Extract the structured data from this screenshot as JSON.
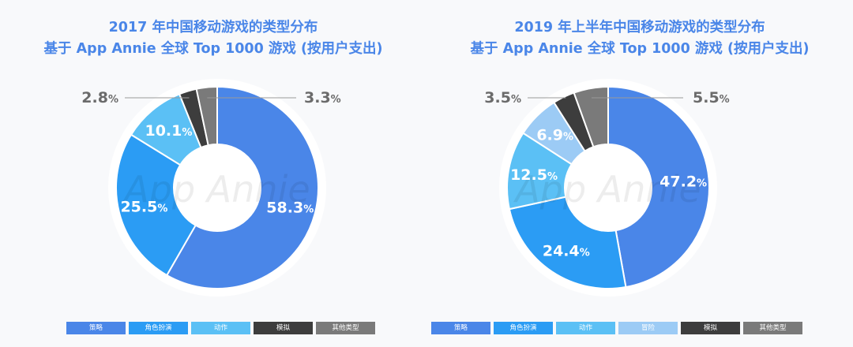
{
  "chart_data": [
    {
      "type": "pie",
      "title": "2017 年中国移动游戏的类型分布",
      "subtitle": "基于 App Annie 全球 Top 1000 游戏 (按用户支出)",
      "watermark": "App Annie",
      "slices": [
        {
          "name": "策略",
          "value": 58.3,
          "label": "58.3",
          "color": "#4a86e8"
        },
        {
          "name": "角色扮演",
          "value": 25.5,
          "label": "25.5",
          "color": "#2b9cf4"
        },
        {
          "name": "动作",
          "value": 10.1,
          "label": "10.1",
          "color": "#5bc0f5"
        },
        {
          "name": "模拟",
          "value": 2.8,
          "label": "2.8",
          "color": "#3d3d3d"
        },
        {
          "name": "其他类型",
          "value": 3.3,
          "label": "3.3",
          "color": "#7a7a7a"
        }
      ],
      "legend": [
        {
          "name": "策略",
          "color": "#4a86e8"
        },
        {
          "name": "角色扮演",
          "color": "#2b9cf4"
        },
        {
          "name": "动作",
          "color": "#5bc0f5"
        },
        {
          "name": "模拟",
          "color": "#3d3d3d"
        },
        {
          "name": "其他类型",
          "color": "#7a7a7a"
        }
      ],
      "legend_position": "bottom",
      "percent_sign": "%"
    },
    {
      "type": "pie",
      "title": "2019 年上半年中国移动游戏的类型分布",
      "subtitle": "基于 App Annie 全球 Top 1000 游戏 (按用户支出)",
      "watermark": "App Annie",
      "slices": [
        {
          "name": "策略",
          "value": 47.2,
          "label": "47.2",
          "color": "#4a86e8"
        },
        {
          "name": "角色扮演",
          "value": 24.4,
          "label": "24.4",
          "color": "#2b9cf4"
        },
        {
          "name": "动作",
          "value": 12.5,
          "label": "12.5",
          "color": "#5bc0f5"
        },
        {
          "name": "冒险",
          "value": 6.9,
          "label": "6.9",
          "color": "#9ccbf5"
        },
        {
          "name": "模拟",
          "value": 3.5,
          "label": "3.5",
          "color": "#3d3d3d"
        },
        {
          "name": "其他类型",
          "value": 5.5,
          "label": "5.5",
          "color": "#7a7a7a"
        }
      ],
      "legend": [
        {
          "name": "策略",
          "color": "#4a86e8"
        },
        {
          "name": "角色扮演",
          "color": "#2b9cf4"
        },
        {
          "name": "动作",
          "color": "#5bc0f5"
        },
        {
          "name": "冒险",
          "color": "#9ccbf5"
        },
        {
          "name": "模拟",
          "color": "#3d3d3d"
        },
        {
          "name": "其他类型",
          "color": "#7a7a7a"
        }
      ],
      "legend_position": "bottom",
      "percent_sign": "%"
    }
  ]
}
